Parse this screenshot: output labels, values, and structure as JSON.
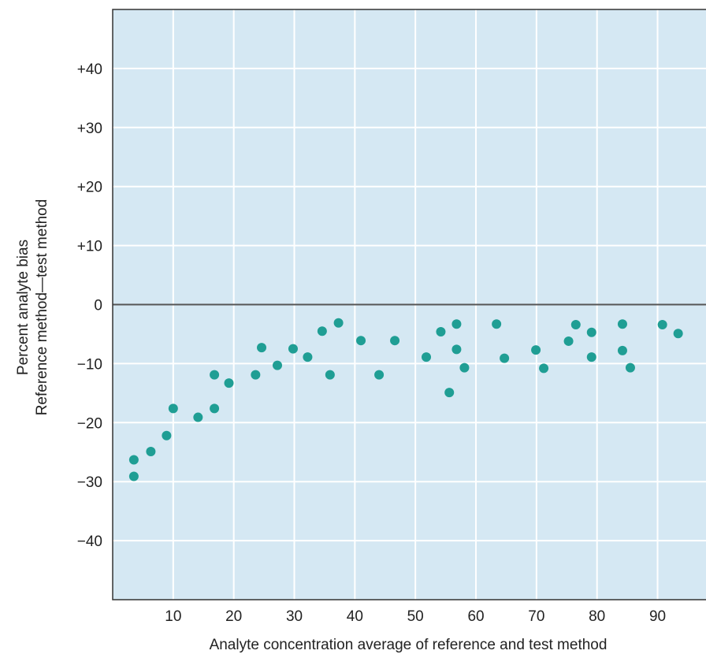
{
  "chart_data": {
    "type": "scatter",
    "xlabel": "Analyte concentration average of reference and test method",
    "ylabel_line1": "Percent analyte bias",
    "ylabel_line2": "Reference method—test method",
    "xlim": [
      0,
      98
    ],
    "ylim": [
      -50,
      50
    ],
    "x_ticks": [
      10,
      20,
      30,
      40,
      50,
      60,
      70,
      80,
      90
    ],
    "x_tick_labels": [
      "10",
      "20",
      "30",
      "40",
      "50",
      "60",
      "70",
      "80",
      "90"
    ],
    "y_ticks": [
      40,
      30,
      20,
      10,
      0,
      -10,
      -20,
      -30,
      -40
    ],
    "y_tick_labels": [
      "+40",
      "+30",
      "+20",
      "+10",
      "0",
      "−10",
      "−20",
      "−30",
      "−40"
    ],
    "grid": true,
    "zero_line": true,
    "colors": {
      "plot_background": "#d5e8f3",
      "grid": "#ffffff",
      "zero_line": "#555555",
      "points": "#1f9e94",
      "frame": "#333333"
    },
    "points": [
      {
        "x": 3.5,
        "y": -26.3
      },
      {
        "x": 3.5,
        "y": -29.1
      },
      {
        "x": 6.3,
        "y": -24.9
      },
      {
        "x": 8.9,
        "y": -22.2
      },
      {
        "x": 10.0,
        "y": -17.6
      },
      {
        "x": 14.1,
        "y": -19.1
      },
      {
        "x": 16.8,
        "y": -11.9
      },
      {
        "x": 16.8,
        "y": -17.6
      },
      {
        "x": 19.2,
        "y": -13.3
      },
      {
        "x": 23.6,
        "y": -11.9
      },
      {
        "x": 24.6,
        "y": -7.3
      },
      {
        "x": 27.2,
        "y": -10.3
      },
      {
        "x": 29.8,
        "y": -7.5
      },
      {
        "x": 32.2,
        "y": -8.9
      },
      {
        "x": 34.6,
        "y": -4.5
      },
      {
        "x": 35.9,
        "y": -11.9
      },
      {
        "x": 37.3,
        "y": -3.1
      },
      {
        "x": 41.0,
        "y": -6.1
      },
      {
        "x": 44.0,
        "y": -11.9
      },
      {
        "x": 46.6,
        "y": -6.1
      },
      {
        "x": 51.8,
        "y": -8.9
      },
      {
        "x": 54.2,
        "y": -4.6
      },
      {
        "x": 55.6,
        "y": -14.9
      },
      {
        "x": 56.8,
        "y": -3.3
      },
      {
        "x": 56.8,
        "y": -7.6
      },
      {
        "x": 58.1,
        "y": -10.7
      },
      {
        "x": 63.4,
        "y": -3.3
      },
      {
        "x": 64.7,
        "y": -9.1
      },
      {
        "x": 69.9,
        "y": -7.7
      },
      {
        "x": 71.2,
        "y": -10.8
      },
      {
        "x": 75.3,
        "y": -6.2
      },
      {
        "x": 76.5,
        "y": -3.4
      },
      {
        "x": 79.1,
        "y": -4.7
      },
      {
        "x": 79.1,
        "y": -8.9
      },
      {
        "x": 84.2,
        "y": -3.3
      },
      {
        "x": 84.2,
        "y": -7.8
      },
      {
        "x": 85.5,
        "y": -10.7
      },
      {
        "x": 90.8,
        "y": -3.4
      },
      {
        "x": 93.4,
        "y": -4.9
      }
    ]
  }
}
